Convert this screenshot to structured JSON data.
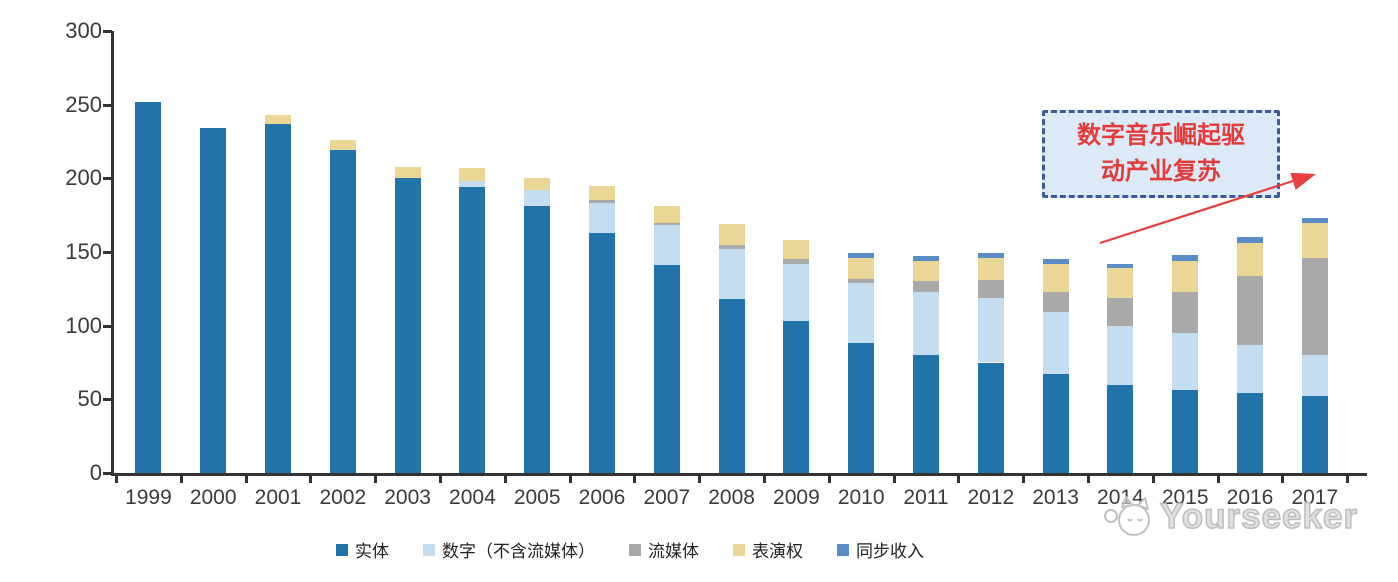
{
  "chart_data": {
    "type": "bar",
    "stacked": true,
    "title": "",
    "xlabel": "",
    "ylabel": "",
    "ylim": [
      0,
      300
    ],
    "yticks": [
      0,
      50,
      100,
      150,
      200,
      250,
      300
    ],
    "grid": false,
    "legend_position": "bottom",
    "categories": [
      "1999",
      "2000",
      "2001",
      "2002",
      "2003",
      "2004",
      "2005",
      "2006",
      "2007",
      "2008",
      "2009",
      "2010",
      "2011",
      "2012",
      "2013",
      "2014",
      "2015",
      "2016",
      "2017"
    ],
    "series": [
      {
        "name": "实体",
        "color": "#2273A9",
        "values": [
          252,
          234,
          237,
          219,
          200,
          194,
          181,
          163,
          141,
          118,
          103,
          88,
          80,
          75,
          67,
          60,
          56,
          54,
          52
        ]
      },
      {
        "name": "数字（不含流媒体）",
        "color": "#C5DDF1",
        "values": [
          0,
          0,
          0,
          0,
          0,
          4,
          11,
          20,
          27,
          34,
          39,
          41,
          43,
          44,
          42,
          40,
          39,
          33,
          28
        ]
      },
      {
        "name": "流媒体",
        "color": "#A9A9A9",
        "values": [
          0,
          0,
          0,
          0,
          0,
          0,
          0,
          2,
          2,
          3,
          3,
          3,
          7,
          12,
          14,
          19,
          28,
          47,
          66
        ]
      },
      {
        "name": "表演权",
        "color": "#EBD795",
        "values": [
          0,
          0,
          6,
          7,
          8,
          9,
          8,
          10,
          11,
          14,
          13,
          14,
          14,
          15,
          19,
          20,
          21,
          22,
          24
        ]
      },
      {
        "name": "同步收入",
        "color": "#5A8DC5",
        "values": [
          0,
          0,
          0,
          0,
          0,
          0,
          0,
          0,
          0,
          0,
          0,
          3,
          3,
          3,
          3,
          3,
          4,
          4,
          3
        ]
      }
    ]
  },
  "annotation": {
    "line1": "数字音乐崛起驱",
    "line2": "动产业复苏",
    "text_color": "#E23B3B",
    "border_color": "#3D5A99",
    "fill_color": "#DCE9F6",
    "arrow_color": "#E84040"
  },
  "watermark": {
    "brand": "Yourseeker"
  }
}
